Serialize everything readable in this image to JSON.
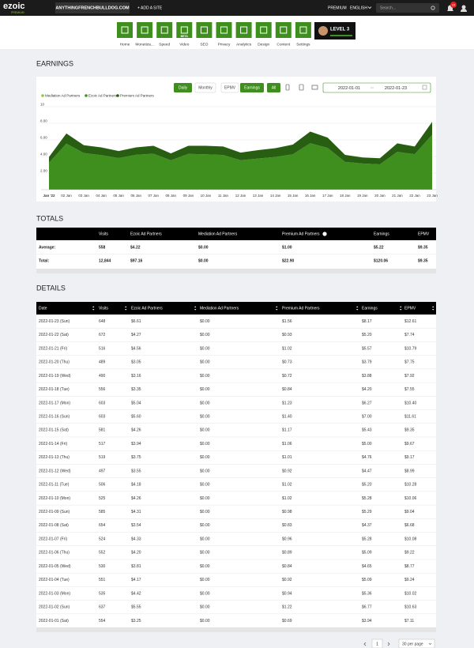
{
  "nav": {
    "brand": "ezoic",
    "brand_sub": "PREMIUM",
    "site": "ANYTHINGFRENCHBULLDOG.COM",
    "add_site": "+ ADD A SITE",
    "premium": "PREMIUM",
    "language": "ENGLISH",
    "search": "Search...",
    "badge": "10"
  },
  "toolbar": {
    "items": [
      "Home",
      "Monetiza...",
      "Speed",
      "Video",
      "SEO",
      "Privacy",
      "Analytics",
      "Design",
      "Content",
      "Settings"
    ],
    "beta": "BETA",
    "level": "LEVEL 3"
  },
  "earnings": {
    "title": "EARNINGS",
    "daily": "Daily",
    "monthly": "Monthly",
    "epmv": "EPMV",
    "earnings": "Earnings",
    "all": "All",
    "date_from": "2022-01-01",
    "date_to": "2022-01-23"
  },
  "chart_data": {
    "type": "area",
    "stacked": true,
    "categories": [
      "Jan '22",
      "02 Jan",
      "03 Jan",
      "04 Jan",
      "05 Jan",
      "06 Jan",
      "07 Jan",
      "08 Jan",
      "09 Jan",
      "10 Jan",
      "11 Jan",
      "12 Jan",
      "13 Jan",
      "14 Jan",
      "15 Jan",
      "16 Jan",
      "17 Jan",
      "18 Jan",
      "19 Jan",
      "20 Jan",
      "21 Jan",
      "22 Jan",
      "23 Jan"
    ],
    "series": [
      {
        "name": "Mediation Ad Partners",
        "color": "#8dc63f",
        "values": [
          0,
          0,
          0,
          0,
          0,
          0,
          0,
          0,
          0,
          0,
          0,
          0,
          0,
          0,
          0,
          0,
          0,
          0,
          0,
          0,
          0,
          0,
          0
        ]
      },
      {
        "name": "Ezoic Ad Partners",
        "color": "#3f8f1f",
        "values": [
          3.25,
          5.55,
          4.42,
          4.17,
          3.81,
          4.2,
          4.33,
          3.54,
          4.31,
          4.26,
          4.18,
          3.55,
          3.75,
          3.94,
          4.26,
          5.6,
          5.04,
          3.35,
          3.16,
          3.05,
          4.56,
          4.27,
          6.61
        ]
      },
      {
        "name": "Premium Ad Partners",
        "color": "#285e12",
        "values": [
          0.69,
          1.22,
          0.94,
          0.92,
          0.84,
          0.89,
          0.96,
          0.83,
          0.98,
          1.02,
          1.02,
          0.92,
          1.01,
          1.06,
          1.17,
          1.4,
          1.23,
          0.84,
          0.72,
          0.73,
          1.02,
          0.93,
          1.56
        ]
      }
    ],
    "ylim": [
      0,
      10
    ],
    "yticks": [
      {
        "value": 2,
        "label": "2.00"
      },
      {
        "value": 4,
        "label": "4.00"
      },
      {
        "value": 6,
        "label": "6.00"
      },
      {
        "value": 8,
        "label": "8.00"
      },
      10
    ],
    "grid": true,
    "legend": "top-left"
  },
  "totals": {
    "title": "TOTALS",
    "headers": [
      "Visits",
      "Ezoic Ad Partners",
      "Mediation Ad Partners",
      "Premium Ad Partners",
      "Earnings",
      "EPMV"
    ],
    "rows": [
      {
        "label": "Average:",
        "cells": [
          "558",
          "$4.22",
          "$0.00",
          "$1.00",
          "$5.22",
          "$9.35"
        ]
      },
      {
        "label": "Total:",
        "cells": [
          "12,844",
          "$97.16",
          "$0.00",
          "$22.90",
          "$120.06",
          "$9.35"
        ]
      }
    ]
  },
  "details": {
    "title": "DETAILS",
    "headers": [
      "Date",
      "Visits",
      "Ezoic Ad Partners",
      "Mediation Ad Partners",
      "Premium Ad Partners",
      "Earnings",
      "EPMV"
    ],
    "rows": [
      [
        "2022-01-23 (Sun)",
        "648",
        "$6.61",
        "$0.00",
        "$1.56",
        "$8.17",
        "$12.61"
      ],
      [
        "2022-01-22 (Sat)",
        "672",
        "$4.27",
        "$0.00",
        "$0.93",
        "$5.20",
        "$7.74"
      ],
      [
        "2022-01-21 (Fri)",
        "516",
        "$4.56",
        "$0.00",
        "$1.02",
        "$5.57",
        "$10.79"
      ],
      [
        "2022-01-20 (Thu)",
        "489",
        "$3.05",
        "$0.00",
        "$0.73",
        "$3.79",
        "$7.75"
      ],
      [
        "2022-01-19 (Wed)",
        "490",
        "$3.16",
        "$0.00",
        "$0.72",
        "$3.88",
        "$7.92"
      ],
      [
        "2022-01-18 (Tue)",
        "556",
        "$3.35",
        "$0.00",
        "$0.84",
        "$4.20",
        "$7.55"
      ],
      [
        "2022-01-17 (Mon)",
        "603",
        "$5.04",
        "$0.00",
        "$1.23",
        "$6.27",
        "$10.40"
      ],
      [
        "2022-01-16 (Sun)",
        "603",
        "$5.60",
        "$0.00",
        "$1.40",
        "$7.00",
        "$11.61"
      ],
      [
        "2022-01-15 (Sat)",
        "581",
        "$4.26",
        "$0.00",
        "$1.17",
        "$5.43",
        "$9.35"
      ],
      [
        "2022-01-14 (Fri)",
        "517",
        "$3.94",
        "$0.00",
        "$1.06",
        "$5.00",
        "$9.67"
      ],
      [
        "2022-01-13 (Thu)",
        "519",
        "$3.75",
        "$0.00",
        "$1.01",
        "$4.76",
        "$9.17"
      ],
      [
        "2022-01-12 (Wed)",
        "497",
        "$3.55",
        "$0.00",
        "$0.92",
        "$4.47",
        "$8.99"
      ],
      [
        "2022-01-11 (Tue)",
        "506",
        "$4.18",
        "$0.00",
        "$1.02",
        "$5.20",
        "$10.28"
      ],
      [
        "2022-01-10 (Mon)",
        "525",
        "$4.26",
        "$0.00",
        "$1.02",
        "$5.28",
        "$10.06"
      ],
      [
        "2022-01-09 (Sun)",
        "585",
        "$4.31",
        "$0.00",
        "$0.98",
        "$5.29",
        "$9.04"
      ],
      [
        "2022-01-08 (Sat)",
        "654",
        "$3.54",
        "$0.00",
        "$0.83",
        "$4.37",
        "$6.68"
      ],
      [
        "2022-01-07 (Fri)",
        "524",
        "$4.33",
        "$0.00",
        "$0.96",
        "$5.28",
        "$10.08"
      ],
      [
        "2022-01-06 (Thu)",
        "552",
        "$4.20",
        "$0.00",
        "$0.89",
        "$5.09",
        "$9.22"
      ],
      [
        "2022-01-05 (Wed)",
        "530",
        "$3.81",
        "$0.00",
        "$0.84",
        "$4.65",
        "$8.77"
      ],
      [
        "2022-01-04 (Tue)",
        "551",
        "$4.17",
        "$0.00",
        "$0.92",
        "$5.09",
        "$9.24"
      ],
      [
        "2022-01-03 (Mon)",
        "535",
        "$4.42",
        "$0.00",
        "$0.94",
        "$5.36",
        "$10.02"
      ],
      [
        "2022-01-02 (Sun)",
        "637",
        "$5.55",
        "$0.00",
        "$1.22",
        "$6.77",
        "$10.63"
      ],
      [
        "2022-01-01 (Sat)",
        "554",
        "$3.25",
        "$0.00",
        "$0.69",
        "$3.94",
        "$7.11"
      ]
    ],
    "page": "1",
    "per_page": "30 per page"
  }
}
